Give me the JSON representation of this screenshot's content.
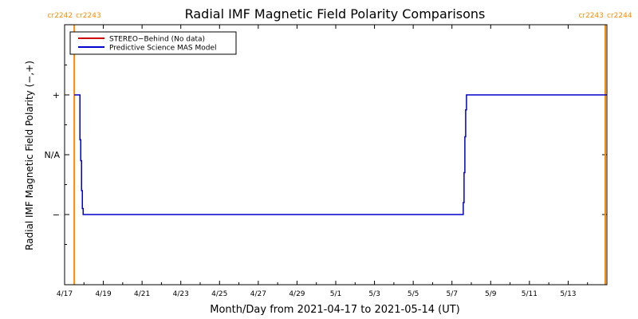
{
  "chart_data": {
    "type": "line",
    "title": "Radial IMF Magnetic Field Polarity Comparisons",
    "xlabel": "Month/Day from 2021-04-17 to 2021-05-14 (UT)",
    "ylabel": "Radial IMF Magnetic Field Polarity (−,+)",
    "x_range": [
      "2021-04-17",
      "2021-05-14"
    ],
    "x_ticks": [
      "4/17",
      "4/19",
      "4/21",
      "4/23",
      "4/25",
      "4/27",
      "4/29",
      "5/1",
      "5/3",
      "5/5",
      "5/7",
      "5/9",
      "5/11",
      "5/13"
    ],
    "y_ticks": [
      "+",
      "N/A",
      "−"
    ],
    "carrington_markers": [
      {
        "date": "2021-04-17T12:00",
        "left_label": "cr2242",
        "right_label": "cr2243"
      },
      {
        "date": "2021-05-14T23:00",
        "left_label": "cr2243",
        "right_label": "cr2244"
      }
    ],
    "legend": [
      {
        "name": "STEREO−Behind (No data)",
        "color": "#cc0000"
      },
      {
        "name": "Predictive Science MAS Model",
        "color": "#0000cc"
      }
    ],
    "legend_position": "top-left",
    "series": [
      {
        "name": "Predictive Science MAS Model",
        "color": "#0000cc",
        "points": [
          [
            "2021-04-17T12:00",
            1
          ],
          [
            "2021-04-17T18:00",
            1
          ],
          [
            "2021-04-17T19:00",
            0.25
          ],
          [
            "2021-04-17T20:00",
            -0.1
          ],
          [
            "2021-04-17T21:00",
            -0.6
          ],
          [
            "2021-04-17T22:00",
            -0.9
          ],
          [
            "2021-04-17T23:00",
            -1
          ],
          [
            "2021-05-07T13:00",
            -1
          ],
          [
            "2021-05-07T14:00",
            -0.8
          ],
          [
            "2021-05-07T15:00",
            -0.3
          ],
          [
            "2021-05-07T16:00",
            0.3
          ],
          [
            "2021-05-07T17:00",
            0.75
          ],
          [
            "2021-05-07T18:00",
            1
          ],
          [
            "2021-05-14T23:59",
            1
          ]
        ]
      }
    ],
    "colors": {
      "marker": "#ff8c00",
      "axis": "#000000",
      "background": "#ffffff"
    }
  }
}
